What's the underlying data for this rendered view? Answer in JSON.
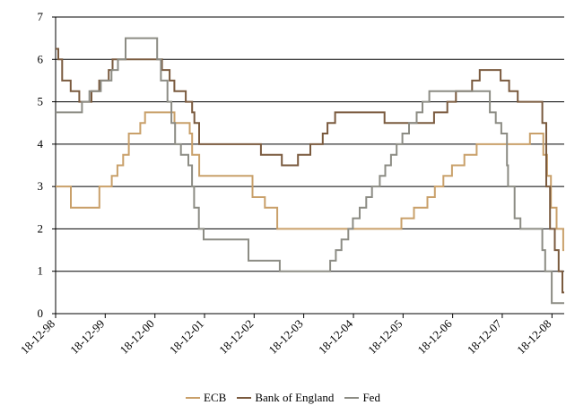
{
  "chart_data": {
    "type": "line",
    "step": true,
    "title": "",
    "xlabel": "",
    "ylabel": "",
    "xlim": [
      "1998-12-18",
      "2009-03-18"
    ],
    "ylim": [
      0,
      7
    ],
    "y_ticks": [
      0,
      1,
      2,
      3,
      4,
      5,
      6,
      7
    ],
    "grid": "horizontal",
    "legend_position": "bottom",
    "x_tick_dates": [
      "1998-12-18",
      "1999-12-18",
      "2000-12-18",
      "2001-12-18",
      "2002-12-18",
      "2003-12-18",
      "2004-12-18",
      "2005-12-18",
      "2006-12-18",
      "2007-12-18",
      "2008-12-18"
    ],
    "x_tick_labels": [
      "18-12-98",
      "18-12-99",
      "18-12-00",
      "18-12-01",
      "18-12-02",
      "18-12-03",
      "18-12-04",
      "18-12-05",
      "18-12-06",
      "18-12-07",
      "18-12-08"
    ],
    "series": [
      {
        "name": "ECB",
        "color": "#c9a06a",
        "points": [
          [
            "1998-12-18",
            3.0
          ],
          [
            "1999-04-09",
            2.5
          ],
          [
            "1999-11-05",
            3.0
          ],
          [
            "2000-02-04",
            3.25
          ],
          [
            "2000-03-17",
            3.5
          ],
          [
            "2000-04-28",
            3.75
          ],
          [
            "2000-06-09",
            4.25
          ],
          [
            "2000-09-01",
            4.5
          ],
          [
            "2000-10-06",
            4.75
          ],
          [
            "2001-05-11",
            4.5
          ],
          [
            "2001-08-31",
            4.25
          ],
          [
            "2001-09-18",
            3.75
          ],
          [
            "2001-11-09",
            3.25
          ],
          [
            "2002-12-06",
            2.75
          ],
          [
            "2003-03-07",
            2.5
          ],
          [
            "2003-06-06",
            2.0
          ],
          [
            "2005-12-06",
            2.25
          ],
          [
            "2006-03-08",
            2.5
          ],
          [
            "2006-06-15",
            2.75
          ],
          [
            "2006-08-09",
            3.0
          ],
          [
            "2006-10-11",
            3.25
          ],
          [
            "2006-12-13",
            3.5
          ],
          [
            "2007-03-14",
            3.75
          ],
          [
            "2007-06-13",
            4.0
          ],
          [
            "2008-07-09",
            4.25
          ],
          [
            "2008-10-15",
            3.75
          ],
          [
            "2008-11-12",
            3.25
          ],
          [
            "2008-12-10",
            2.5
          ],
          [
            "2009-01-21",
            2.0
          ],
          [
            "2009-03-11",
            1.5
          ],
          [
            "2009-03-18",
            1.5
          ]
        ]
      },
      {
        "name": "Bank of England",
        "color": "#7a5a3e",
        "points": [
          [
            "1998-12-18",
            6.25
          ],
          [
            "1999-01-07",
            6.0
          ],
          [
            "1999-02-04",
            5.5
          ],
          [
            "1999-04-08",
            5.25
          ],
          [
            "1999-06-10",
            5.0
          ],
          [
            "1999-09-08",
            5.25
          ],
          [
            "1999-11-04",
            5.5
          ],
          [
            "2000-01-13",
            5.75
          ],
          [
            "2000-02-10",
            6.0
          ],
          [
            "2001-02-08",
            5.75
          ],
          [
            "2001-04-05",
            5.5
          ],
          [
            "2001-05-10",
            5.25
          ],
          [
            "2001-08-02",
            5.0
          ],
          [
            "2001-09-18",
            4.75
          ],
          [
            "2001-10-04",
            4.5
          ],
          [
            "2001-11-08",
            4.0
          ],
          [
            "2003-02-06",
            3.75
          ],
          [
            "2003-07-10",
            3.5
          ],
          [
            "2003-11-06",
            3.75
          ],
          [
            "2004-02-05",
            4.0
          ],
          [
            "2004-05-06",
            4.25
          ],
          [
            "2004-06-10",
            4.5
          ],
          [
            "2004-08-05",
            4.75
          ],
          [
            "2005-08-04",
            4.5
          ],
          [
            "2006-08-03",
            4.75
          ],
          [
            "2006-11-09",
            5.0
          ],
          [
            "2007-01-11",
            5.25
          ],
          [
            "2007-05-10",
            5.5
          ],
          [
            "2007-07-05",
            5.75
          ],
          [
            "2007-12-06",
            5.5
          ],
          [
            "2008-02-07",
            5.25
          ],
          [
            "2008-04-10",
            5.0
          ],
          [
            "2008-10-08",
            4.5
          ],
          [
            "2008-11-06",
            3.0
          ],
          [
            "2008-12-04",
            2.0
          ],
          [
            "2009-01-08",
            1.5
          ],
          [
            "2009-02-05",
            1.0
          ],
          [
            "2009-03-05",
            0.5
          ],
          [
            "2009-03-18",
            0.5
          ]
        ]
      },
      {
        "name": "Fed",
        "color": "#8c8c84",
        "points": [
          [
            "1998-12-18",
            4.75
          ],
          [
            "1999-06-30",
            5.0
          ],
          [
            "1999-08-24",
            5.25
          ],
          [
            "1999-11-16",
            5.5
          ],
          [
            "2000-02-02",
            5.75
          ],
          [
            "2000-03-21",
            6.0
          ],
          [
            "2000-05-16",
            6.5
          ],
          [
            "2001-01-03",
            6.0
          ],
          [
            "2001-01-31",
            5.5
          ],
          [
            "2001-03-20",
            5.0
          ],
          [
            "2001-04-18",
            4.5
          ],
          [
            "2001-05-15",
            4.0
          ],
          [
            "2001-06-27",
            3.75
          ],
          [
            "2001-08-21",
            3.5
          ],
          [
            "2001-09-17",
            3.0
          ],
          [
            "2001-10-02",
            2.5
          ],
          [
            "2001-11-06",
            2.0
          ],
          [
            "2001-12-11",
            1.75
          ],
          [
            "2002-11-06",
            1.25
          ],
          [
            "2003-06-25",
            1.0
          ],
          [
            "2004-06-30",
            1.25
          ],
          [
            "2004-08-10",
            1.5
          ],
          [
            "2004-09-21",
            1.75
          ],
          [
            "2004-11-10",
            2.0
          ],
          [
            "2004-12-14",
            2.25
          ],
          [
            "2005-02-02",
            2.5
          ],
          [
            "2005-03-22",
            2.75
          ],
          [
            "2005-05-03",
            3.0
          ],
          [
            "2005-06-30",
            3.25
          ],
          [
            "2005-08-09",
            3.5
          ],
          [
            "2005-09-20",
            3.75
          ],
          [
            "2005-11-01",
            4.0
          ],
          [
            "2005-12-13",
            4.25
          ],
          [
            "2006-01-31",
            4.5
          ],
          [
            "2006-03-28",
            4.75
          ],
          [
            "2006-05-10",
            5.0
          ],
          [
            "2006-06-29",
            5.25
          ],
          [
            "2007-09-18",
            4.75
          ],
          [
            "2007-10-31",
            4.5
          ],
          [
            "2007-12-11",
            4.25
          ],
          [
            "2008-01-22",
            3.5
          ],
          [
            "2008-01-30",
            3.0
          ],
          [
            "2008-03-18",
            2.25
          ],
          [
            "2008-04-30",
            2.0
          ],
          [
            "2008-10-08",
            1.5
          ],
          [
            "2008-10-29",
            1.0
          ],
          [
            "2008-12-16",
            0.25
          ],
          [
            "2009-03-18",
            0.25
          ]
        ]
      }
    ]
  }
}
